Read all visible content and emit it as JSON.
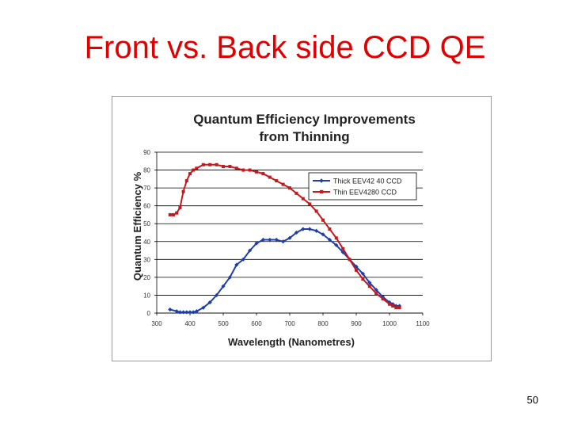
{
  "slide": {
    "title": "Front vs. Back side CCD QE",
    "page_number": "50"
  },
  "chart_data": {
    "type": "line",
    "title_lines": [
      "Quantum Efficiency Improvements",
      "from Thinning"
    ],
    "xlabel": "Wavelength (Nanometres)",
    "ylabel": "Quantum Efficiency %",
    "xlim": [
      300,
      1100
    ],
    "ylim": [
      0,
      90
    ],
    "xticks": [
      "300",
      "400",
      "500",
      "600",
      "700",
      "800",
      "900",
      "1000",
      "1100"
    ],
    "yticks": [
      "0",
      "10",
      "20",
      "30",
      "40",
      "50",
      "60",
      "70",
      "80",
      "90"
    ],
    "grid": "horizontal",
    "legend_position": "top-right",
    "series": [
      {
        "name": "Thick EEV42 40 CCD",
        "color": "#1f3fa8",
        "marker": "diamond",
        "x": [
          340,
          360,
          370,
          380,
          390,
          400,
          410,
          420,
          440,
          460,
          480,
          500,
          520,
          540,
          560,
          580,
          600,
          620,
          640,
          660,
          680,
          700,
          720,
          740,
          760,
          780,
          800,
          820,
          840,
          860,
          880,
          900,
          920,
          940,
          960,
          980,
          1000,
          1010,
          1020,
          1030
        ],
        "y": [
          2,
          1,
          0.5,
          0.5,
          0.5,
          0.5,
          0.5,
          1,
          3,
          6,
          10,
          15,
          20,
          27,
          30,
          35,
          39,
          41,
          41,
          41,
          40,
          42,
          45,
          47,
          47,
          46,
          44,
          41,
          38,
          34,
          30,
          26,
          22,
          17,
          13,
          9,
          6,
          5,
          4,
          4
        ]
      },
      {
        "name": "Thin EEV4280 CCD",
        "color": "#c4191d",
        "marker": "square",
        "x": [
          340,
          350,
          360,
          370,
          380,
          390,
          400,
          410,
          420,
          440,
          460,
          480,
          500,
          520,
          540,
          560,
          580,
          600,
          620,
          640,
          660,
          680,
          700,
          720,
          740,
          760,
          780,
          800,
          820,
          840,
          860,
          880,
          900,
          920,
          940,
          960,
          980,
          1000,
          1010,
          1020,
          1030
        ],
        "y": [
          55,
          55,
          56,
          59,
          68,
          74,
          78,
          80,
          81,
          83,
          83,
          83,
          82,
          82,
          81,
          80,
          80,
          79,
          78,
          76,
          74,
          72,
          70,
          67,
          64,
          61,
          57,
          52,
          47,
          42,
          36,
          30,
          24,
          19,
          15,
          11,
          8,
          5,
          4,
          3,
          3
        ]
      }
    ]
  }
}
